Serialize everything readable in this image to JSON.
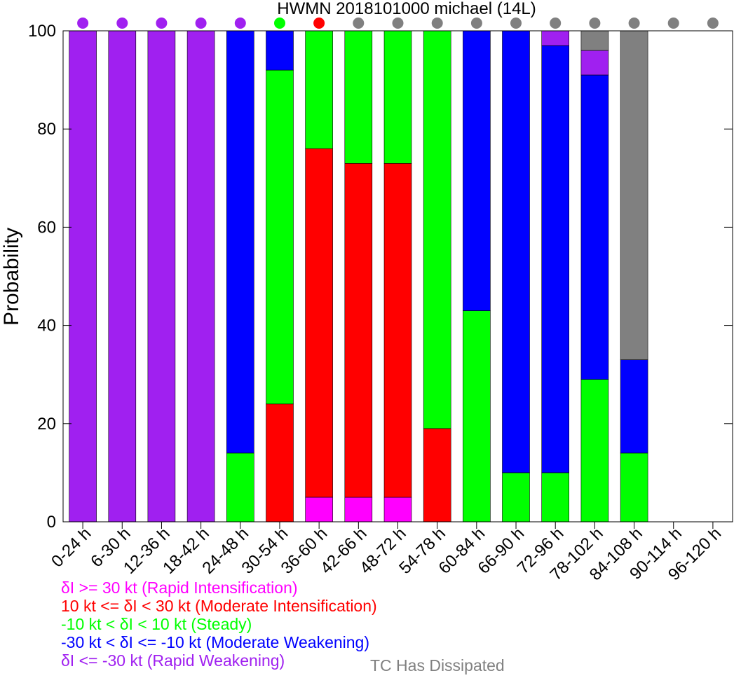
{
  "chart_data": {
    "type": "bar",
    "stacked": true,
    "title": "HWMN 2018101000 michael (14L)",
    "ylabel": "Probability",
    "xlabel": "",
    "ylim": [
      0,
      100
    ],
    "yticks": [
      0,
      20,
      40,
      60,
      80,
      100
    ],
    "grid": false,
    "categories": [
      "0-24 h",
      "6-30 h",
      "12-36 h",
      "18-42 h",
      "24-48 h",
      "30-54 h",
      "36-60 h",
      "42-66 h",
      "48-72 h",
      "54-78 h",
      "60-84 h",
      "66-90 h",
      "72-96 h",
      "78-102 h",
      "84-108 h",
      "90-114 h",
      "96-120 h"
    ],
    "series": [
      {
        "name": "δI >= 30 kt (Rapid Intensification)",
        "color": "#ff00ff",
        "values": [
          0,
          0,
          0,
          0,
          0,
          0,
          5,
          5,
          5,
          0,
          0,
          0,
          0,
          0,
          0,
          0,
          0
        ]
      },
      {
        "name": "10 kt <= δI < 30 kt (Moderate Intensification)",
        "color": "#ff0000",
        "values": [
          0,
          0,
          0,
          0,
          0,
          24,
          71,
          68,
          68,
          19,
          0,
          0,
          0,
          0,
          0,
          0,
          0
        ]
      },
      {
        "name": "-10 kt < δI < 10 kt (Steady)",
        "color": "#00ff00",
        "values": [
          0,
          0,
          0,
          0,
          14,
          68,
          24,
          27,
          27,
          81,
          43,
          10,
          10,
          29,
          14,
          0,
          0
        ]
      },
      {
        "name": "-30 kt < δI <= -10 kt (Moderate Weakening)",
        "color": "#0000ff",
        "values": [
          0,
          0,
          0,
          0,
          86,
          8,
          0,
          0,
          0,
          0,
          57,
          90,
          87,
          62,
          19,
          0,
          0
        ]
      },
      {
        "name": "δI <= -30 kt (Rapid Weakening)",
        "color": "#a020f0",
        "values": [
          100,
          100,
          100,
          100,
          0,
          0,
          0,
          0,
          0,
          0,
          0,
          0,
          3,
          5,
          0,
          0,
          0
        ]
      },
      {
        "name": "TC Has Dissipated",
        "color": "#808080",
        "values": [
          0,
          0,
          0,
          0,
          0,
          0,
          0,
          0,
          0,
          0,
          0,
          0,
          0,
          4,
          67,
          0,
          0
        ]
      }
    ],
    "top_markers": [
      "#a020f0",
      "#a020f0",
      "#a020f0",
      "#a020f0",
      "#a020f0",
      "#00ff00",
      "#ff0000",
      "#808080",
      "#808080",
      "#808080",
      "#808080",
      "#808080",
      "#808080",
      "#808080",
      "#808080",
      "#808080",
      "#808080"
    ]
  },
  "legend": {
    "items": [
      {
        "label": "δI >= 30 kt (Rapid Intensification)",
        "color": "#ff00ff"
      },
      {
        "label": "10 kt <= δI < 30 kt (Moderate Intensification)",
        "color": "#ff0000"
      },
      {
        "label": "-10 kt < δI < 10 kt (Steady)",
        "color": "#00ff00"
      },
      {
        "label": "-30 kt < δI <= -10 kt (Moderate Weakening)",
        "color": "#0000ff"
      },
      {
        "label": "δI <= -30 kt (Rapid Weakening)",
        "color": "#a020f0"
      }
    ],
    "dissipated": {
      "label": "TC Has Dissipated",
      "color": "#808080"
    }
  }
}
